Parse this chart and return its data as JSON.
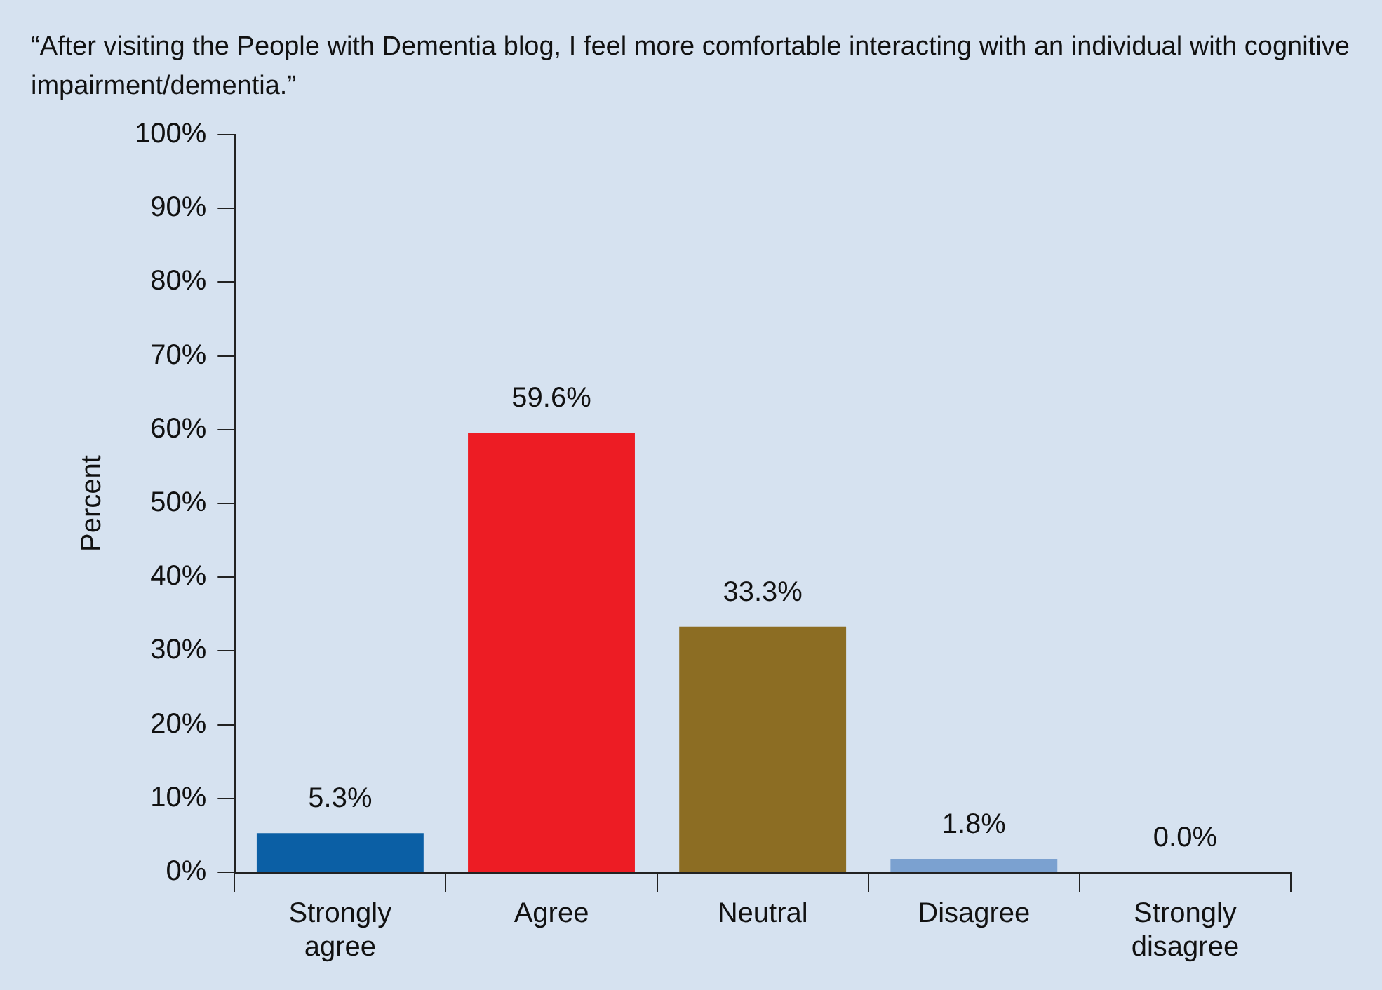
{
  "chart_data": {
    "type": "bar",
    "title": "“After visiting the People with Dementia blog, I feel more comfortable interacting with an individual with cognitive impairment/dementia.”",
    "ylabel": "Percent",
    "categories": [
      "Strongly agree",
      "Agree",
      "Neutral",
      "Disagree",
      "Strongly disagree"
    ],
    "values": [
      5.3,
      59.6,
      33.3,
      1.8,
      0.0
    ],
    "colors": [
      "#0b5fa5",
      "#ed1c24",
      "#8c6d23",
      "#7ba1d0",
      "#7ba1d0"
    ],
    "value_labels": [
      "5.3%",
      "59.6%",
      "33.3%",
      "1.8%",
      "0.0%"
    ],
    "ylim": [
      0,
      100
    ],
    "yticks": [
      {
        "value": 0,
        "label": "0%"
      },
      {
        "value": 10,
        "label": "10%"
      },
      {
        "value": 20,
        "label": "20%"
      },
      {
        "value": 30,
        "label": "30%"
      },
      {
        "value": 40,
        "label": "40%"
      },
      {
        "value": 50,
        "label": "50%"
      },
      {
        "value": 60,
        "label": "60%"
      },
      {
        "value": 70,
        "label": "70%"
      },
      {
        "value": 80,
        "label": "80%"
      },
      {
        "value": 90,
        "label": "90%"
      },
      {
        "value": 100,
        "label": "100%"
      }
    ],
    "grid": false,
    "legend": false
  }
}
